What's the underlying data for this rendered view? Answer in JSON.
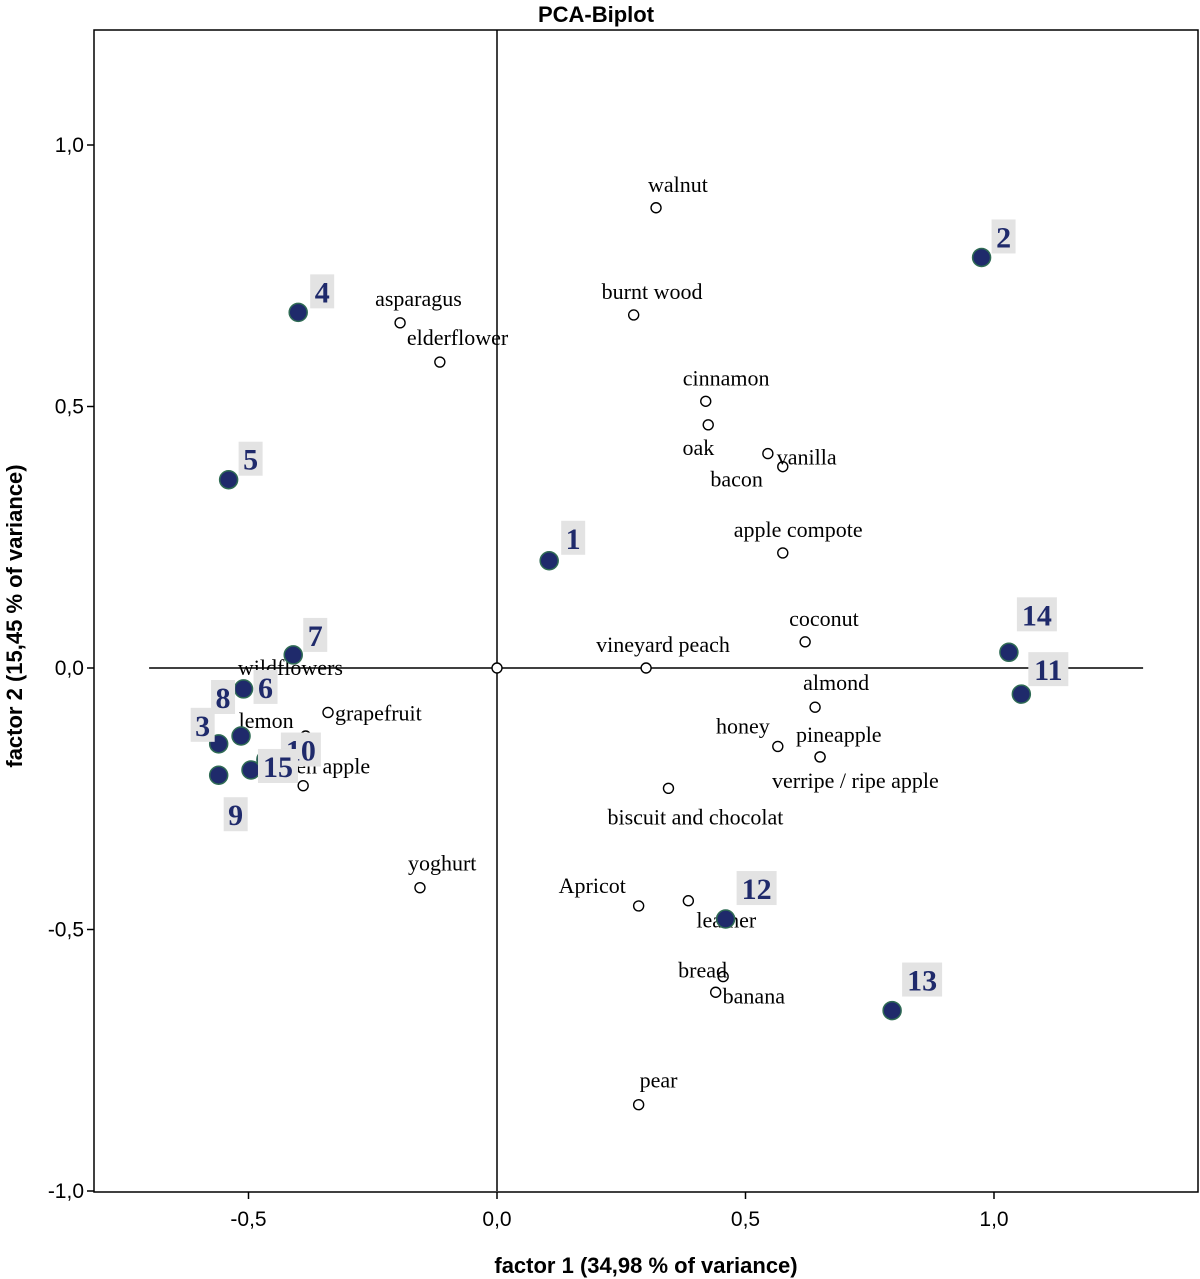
{
  "chart_data": {
    "type": "scatter",
    "title": "PCA-Biplot",
    "xlabel": "factor 1 (34,98 % of variance)",
    "ylabel": "factor 2 (15,45 % of variance)",
    "xlim": [
      -0.8,
      1.4
    ],
    "ylim": [
      -1.0,
      1.22
    ],
    "x_ticks": [
      -0.5,
      0.0,
      0.5,
      1.0
    ],
    "y_ticks": [
      -1.0,
      -0.5,
      0.0,
      0.5,
      1.0
    ],
    "x_tick_labels": [
      "-0,5",
      "0,0",
      "0,5",
      "1,0"
    ],
    "y_tick_labels": [
      "-1,0",
      "-0,5",
      "0,0",
      "0,5",
      "1,0"
    ],
    "reference_lines": {
      "x_range": [
        -0.7,
        1.3
      ],
      "y_range": [
        -1.0,
        1.22
      ]
    },
    "origin_marker": {
      "x": 0.0,
      "y": 0.0
    },
    "variables": [
      {
        "name": "walnut",
        "x": 0.32,
        "y": 0.88
      },
      {
        "name": "burnt wood",
        "x": 0.275,
        "y": 0.675
      },
      {
        "name": "asparagus",
        "x": -0.195,
        "y": 0.66
      },
      {
        "name": "elderflower",
        "x": -0.115,
        "y": 0.585
      },
      {
        "name": "cinnamon",
        "x": 0.42,
        "y": 0.51
      },
      {
        "name": "oak",
        "x": 0.425,
        "y": 0.465
      },
      {
        "name": "vanilla",
        "x": 0.575,
        "y": 0.385
      },
      {
        "name": "bacon",
        "x": 0.545,
        "y": 0.41
      },
      {
        "name": "apple compote",
        "x": 0.575,
        "y": 0.22
      },
      {
        "name": "coconut",
        "x": 0.62,
        "y": 0.05
      },
      {
        "name": "vineyard peach",
        "x": 0.3,
        "y": 0.0
      },
      {
        "name": "almond",
        "x": 0.64,
        "y": -0.075
      },
      {
        "name": "honey",
        "x": 0.565,
        "y": -0.15
      },
      {
        "name": "pineapple",
        "x": 0.65,
        "y": -0.17
      },
      {
        "name": "verripe / ripe apple",
        "x": 0.65,
        "y": -0.17
      },
      {
        "name": "biscuit and chocolat",
        "x": 0.345,
        "y": -0.23
      },
      {
        "name": "wildflowers",
        "x": -0.455,
        "y": -0.025
      },
      {
        "name": "grapefruit",
        "x": -0.34,
        "y": -0.085
      },
      {
        "name": "lemon",
        "x": -0.385,
        "y": -0.13
      },
      {
        "name": "green apple",
        "x": -0.39,
        "y": -0.225
      },
      {
        "name": "yoghurt",
        "x": -0.155,
        "y": -0.42
      },
      {
        "name": "Apricot",
        "x": 0.285,
        "y": -0.455
      },
      {
        "name": "leather",
        "x": 0.385,
        "y": -0.445
      },
      {
        "name": "bread",
        "x": 0.455,
        "y": -0.59
      },
      {
        "name": "banana",
        "x": 0.44,
        "y": -0.62
      },
      {
        "name": "pear",
        "x": 0.285,
        "y": -0.835
      }
    ],
    "observations": [
      {
        "label": "1",
        "x": 0.105,
        "y": 0.205
      },
      {
        "label": "2",
        "x": 0.975,
        "y": 0.785
      },
      {
        "label": "3",
        "x": -0.56,
        "y": -0.145
      },
      {
        "label": "4",
        "x": -0.4,
        "y": 0.68
      },
      {
        "label": "5",
        "x": -0.54,
        "y": 0.36
      },
      {
        "label": "6",
        "x": -0.51,
        "y": -0.04
      },
      {
        "label": "7",
        "x": -0.41,
        "y": 0.025
      },
      {
        "label": "8",
        "x": -0.515,
        "y": -0.13
      },
      {
        "label": "9",
        "x": -0.56,
        "y": -0.205
      },
      {
        "label": "10",
        "x": -0.465,
        "y": -0.175
      },
      {
        "label": "11",
        "x": 1.055,
        "y": -0.05
      },
      {
        "label": "12",
        "x": 0.46,
        "y": -0.48
      },
      {
        "label": "13",
        "x": 0.795,
        "y": -0.655
      },
      {
        "label": "14",
        "x": 1.03,
        "y": 0.03
      },
      {
        "label": "15",
        "x": -0.495,
        "y": -0.195
      }
    ]
  }
}
